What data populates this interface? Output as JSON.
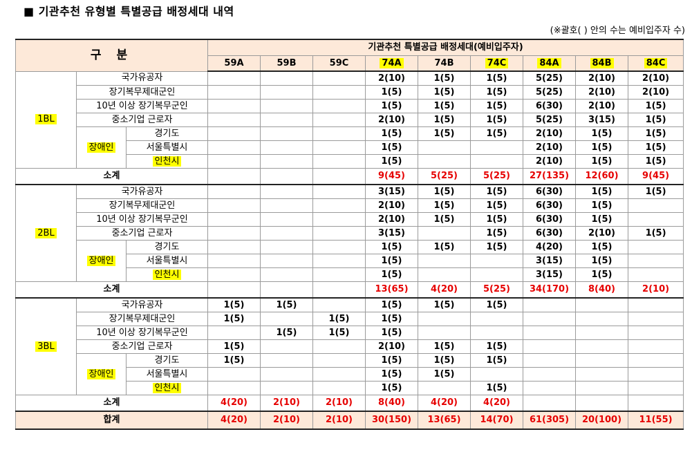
{
  "title": "■ 기관추천 유형별 특별공급 배정세대 내역",
  "note": "(※괄호( ) 안의 수는 예비입주자 수)",
  "header": {
    "gubun": "구 분",
    "group": "기관추천 특별공급 배정세대(예비입주자)",
    "types": [
      "59A",
      "59B",
      "59C",
      "74A",
      "74B",
      "74C",
      "84A",
      "84B",
      "84C"
    ],
    "highlighted_types": [
      "74A",
      "74C",
      "84A",
      "84B",
      "84C"
    ]
  },
  "highlight_color": "#ffff00",
  "subtotal_color": "#e60000",
  "blocks": [
    {
      "name": "1BL",
      "disabled_label": "장애인",
      "rows": [
        {
          "label": "국가유공자",
          "values": [
            "",
            "",
            "",
            "2(10)",
            "1(5)",
            "1(5)",
            "5(25)",
            "2(10)",
            "2(10)"
          ]
        },
        {
          "label": "장기복무제대군인",
          "values": [
            "",
            "",
            "",
            "1(5)",
            "1(5)",
            "1(5)",
            "5(25)",
            "2(10)",
            "2(10)"
          ]
        },
        {
          "label": "10년 이상 장기복무군인",
          "values": [
            "",
            "",
            "",
            "1(5)",
            "1(5)",
            "1(5)",
            "6(30)",
            "2(10)",
            "1(5)"
          ]
        },
        {
          "label": "중소기업 근로자",
          "values": [
            "",
            "",
            "",
            "2(10)",
            "1(5)",
            "1(5)",
            "5(25)",
            "3(15)",
            "1(5)"
          ]
        },
        {
          "label": "경기도",
          "values": [
            "",
            "",
            "",
            "1(5)",
            "1(5)",
            "1(5)",
            "2(10)",
            "1(5)",
            "1(5)"
          ]
        },
        {
          "label": "서울특별시",
          "values": [
            "",
            "",
            "",
            "1(5)",
            "",
            "",
            "2(10)",
            "1(5)",
            "1(5)"
          ]
        },
        {
          "label": "인천시",
          "values": [
            "",
            "",
            "",
            "1(5)",
            "",
            "",
            "2(10)",
            "1(5)",
            "1(5)"
          ]
        }
      ],
      "subtotal_label": "소계",
      "subtotal": [
        "",
        "",
        "",
        "9(45)",
        "5(25)",
        "5(25)",
        "27(135)",
        "12(60)",
        "9(45)"
      ]
    },
    {
      "name": "2BL",
      "disabled_label": "장애인",
      "rows": [
        {
          "label": "국가유공자",
          "values": [
            "",
            "",
            "",
            "3(15)",
            "1(5)",
            "1(5)",
            "6(30)",
            "1(5)",
            "1(5)"
          ]
        },
        {
          "label": "장기복무제대군인",
          "values": [
            "",
            "",
            "",
            "2(10)",
            "1(5)",
            "1(5)",
            "6(30)",
            "1(5)",
            ""
          ]
        },
        {
          "label": "10년 이상 장기복무군인",
          "values": [
            "",
            "",
            "",
            "2(10)",
            "1(5)",
            "1(5)",
            "6(30)",
            "1(5)",
            ""
          ]
        },
        {
          "label": "중소기업 근로자",
          "values": [
            "",
            "",
            "",
            "3(15)",
            "",
            "1(5)",
            "6(30)",
            "2(10)",
            "1(5)"
          ]
        },
        {
          "label": "경기도",
          "values": [
            "",
            "",
            "",
            "1(5)",
            "1(5)",
            "1(5)",
            "4(20)",
            "1(5)",
            ""
          ]
        },
        {
          "label": "서울특별시",
          "values": [
            "",
            "",
            "",
            "1(5)",
            "",
            "",
            "3(15)",
            "1(5)",
            ""
          ]
        },
        {
          "label": "인천시",
          "values": [
            "",
            "",
            "",
            "1(5)",
            "",
            "",
            "3(15)",
            "1(5)",
            ""
          ]
        }
      ],
      "subtotal_label": "소계",
      "subtotal": [
        "",
        "",
        "",
        "13(65)",
        "4(20)",
        "5(25)",
        "34(170)",
        "8(40)",
        "2(10)"
      ]
    },
    {
      "name": "3BL",
      "disabled_label": "장애인",
      "rows": [
        {
          "label": "국가유공자",
          "values": [
            "1(5)",
            "1(5)",
            "",
            "1(5)",
            "1(5)",
            "1(5)",
            "",
            "",
            ""
          ]
        },
        {
          "label": "장기복무제대군인",
          "values": [
            "1(5)",
            "",
            "1(5)",
            "1(5)",
            "",
            "",
            "",
            "",
            ""
          ]
        },
        {
          "label": "10년 이상 장기복무군인",
          "values": [
            "",
            "1(5)",
            "1(5)",
            "1(5)",
            "",
            "",
            "",
            "",
            ""
          ]
        },
        {
          "label": "중소기업 근로자",
          "values": [
            "1(5)",
            "",
            "",
            "2(10)",
            "1(5)",
            "1(5)",
            "",
            "",
            ""
          ]
        },
        {
          "label": "경기도",
          "values": [
            "1(5)",
            "",
            "",
            "1(5)",
            "1(5)",
            "1(5)",
            "",
            "",
            ""
          ]
        },
        {
          "label": "서울특별시",
          "values": [
            "",
            "",
            "",
            "1(5)",
            "1(5)",
            "",
            "",
            "",
            ""
          ]
        },
        {
          "label": "인천시",
          "values": [
            "",
            "",
            "",
            "1(5)",
            "",
            "1(5)",
            "",
            "",
            ""
          ]
        }
      ],
      "subtotal_label": "소계",
      "subtotal": [
        "4(20)",
        "2(10)",
        "2(10)",
        "8(40)",
        "4(20)",
        "4(20)",
        "",
        "",
        ""
      ]
    }
  ],
  "total": {
    "label": "합계",
    "values": [
      "4(20)",
      "2(10)",
      "2(10)",
      "30(150)",
      "13(65)",
      "14(70)",
      "61(305)",
      "20(100)",
      "11(55)"
    ]
  }
}
